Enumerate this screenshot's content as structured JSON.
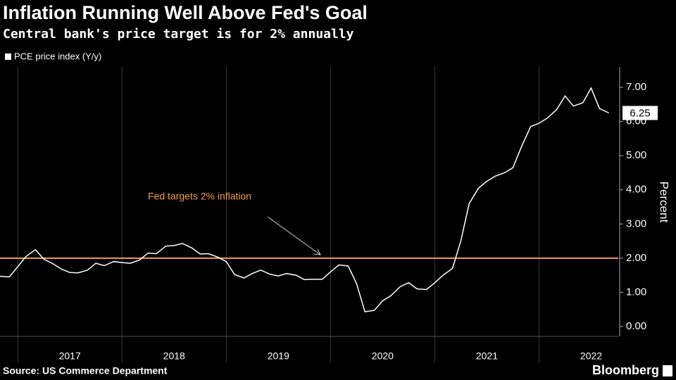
{
  "chart_data": {
    "type": "line",
    "title": "Inflation Running Well Above Fed's Goal",
    "subtitle": "Central bank's price target is for 2% annually",
    "source": "Source: US Commerce Department",
    "brand": "Bloomberg",
    "y_label": "Percent",
    "x": [
      2016.83,
      2016.92,
      2017.0,
      2017.08,
      2017.17,
      2017.25,
      2017.33,
      2017.42,
      2017.5,
      2017.58,
      2017.67,
      2017.75,
      2017.83,
      2017.92,
      2018.0,
      2018.08,
      2018.17,
      2018.25,
      2018.33,
      2018.42,
      2018.5,
      2018.58,
      2018.67,
      2018.75,
      2018.83,
      2018.92,
      2019.0,
      2019.08,
      2019.17,
      2019.25,
      2019.33,
      2019.42,
      2019.5,
      2019.58,
      2019.67,
      2019.75,
      2019.83,
      2019.92,
      2020.0,
      2020.08,
      2020.17,
      2020.25,
      2020.33,
      2020.42,
      2020.5,
      2020.58,
      2020.67,
      2020.75,
      2020.83,
      2020.92,
      2021.0,
      2021.08,
      2021.17,
      2021.25,
      2021.33,
      2021.42,
      2021.5,
      2021.58,
      2021.67,
      2021.75,
      2021.83,
      2021.92,
      2022.0,
      2022.08,
      2022.17,
      2022.25,
      2022.33,
      2022.42,
      2022.5,
      2022.58,
      2022.67
    ],
    "series": [
      {
        "name": "PCE price index (Y/y)",
        "color": "#ffffff",
        "values": [
          1.47,
          1.45,
          1.75,
          2.05,
          2.25,
          1.97,
          1.85,
          1.68,
          1.58,
          1.57,
          1.65,
          1.85,
          1.78,
          1.9,
          1.87,
          1.85,
          1.95,
          2.15,
          2.13,
          2.35,
          2.37,
          2.43,
          2.3,
          2.12,
          2.13,
          2.03,
          1.9,
          1.52,
          1.42,
          1.55,
          1.65,
          1.53,
          1.48,
          1.55,
          1.5,
          1.37,
          1.38,
          1.38,
          1.6,
          1.8,
          1.77,
          1.25,
          0.43,
          0.47,
          0.75,
          0.9,
          1.17,
          1.28,
          1.1,
          1.08,
          1.28,
          1.5,
          1.7,
          2.5,
          3.6,
          4.05,
          4.25,
          4.4,
          4.5,
          4.65,
          5.25,
          5.85,
          5.95,
          6.1,
          6.35,
          6.75,
          6.45,
          6.55,
          6.98,
          6.38,
          6.25
        ]
      }
    ],
    "target": {
      "value": 2,
      "color": "#f39c4a",
      "label": "Fed targets 2% inflation"
    },
    "xlim": [
      2016.83,
      2022.76
    ],
    "xticks": [
      2017,
      2018,
      2019,
      2020,
      2021,
      2022
    ],
    "ylim": [
      -0.29,
      7.6
    ],
    "yticks": [
      {
        "value": 0,
        "label": "0.00"
      },
      {
        "value": 1,
        "label": "1.00"
      },
      {
        "value": 2,
        "label": "2.00"
      },
      {
        "value": 3,
        "label": "3.00"
      },
      {
        "value": 4,
        "label": "4.00"
      },
      {
        "value": 5,
        "label": "5.00"
      },
      {
        "value": 6,
        "label": "6.00"
      },
      {
        "value": 7,
        "label": "7.00"
      }
    ]
  }
}
